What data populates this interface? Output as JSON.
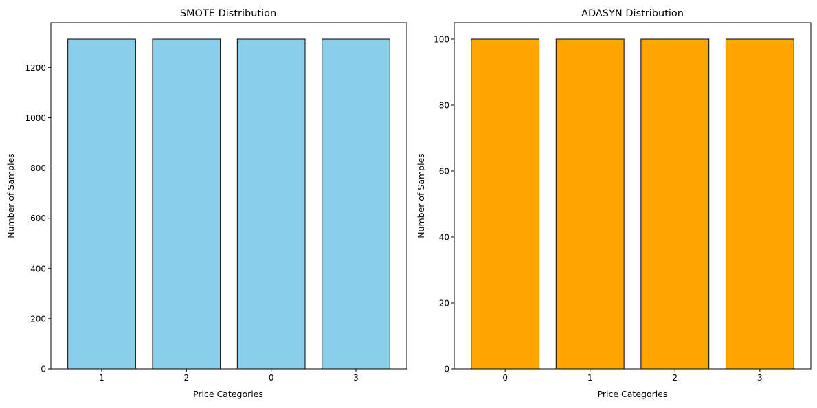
{
  "chart_data": [
    {
      "type": "bar",
      "title": "SMOTE Distribution",
      "xlabel": "Price Categories",
      "ylabel": "Number of Samples",
      "categories": [
        "1",
        "2",
        "0",
        "3"
      ],
      "values": [
        1313,
        1313,
        1313,
        1313
      ],
      "ylim": [
        0,
        1378.65
      ],
      "yticks": [
        0,
        200,
        400,
        600,
        800,
        1000,
        1200
      ],
      "bar_color": "#87CEEB",
      "edge_color": "#000000",
      "grid": false
    },
    {
      "type": "bar",
      "title": "ADASYN Distribution",
      "xlabel": "Price Categories",
      "ylabel": "Number of Samples",
      "categories": [
        "0",
        "1",
        "2",
        "3"
      ],
      "values": [
        100,
        100,
        100,
        100
      ],
      "ylim": [
        0,
        105
      ],
      "yticks": [
        0,
        20,
        40,
        60,
        80,
        100
      ],
      "bar_color": "#FFA500",
      "edge_color": "#000000",
      "grid": false
    }
  ]
}
